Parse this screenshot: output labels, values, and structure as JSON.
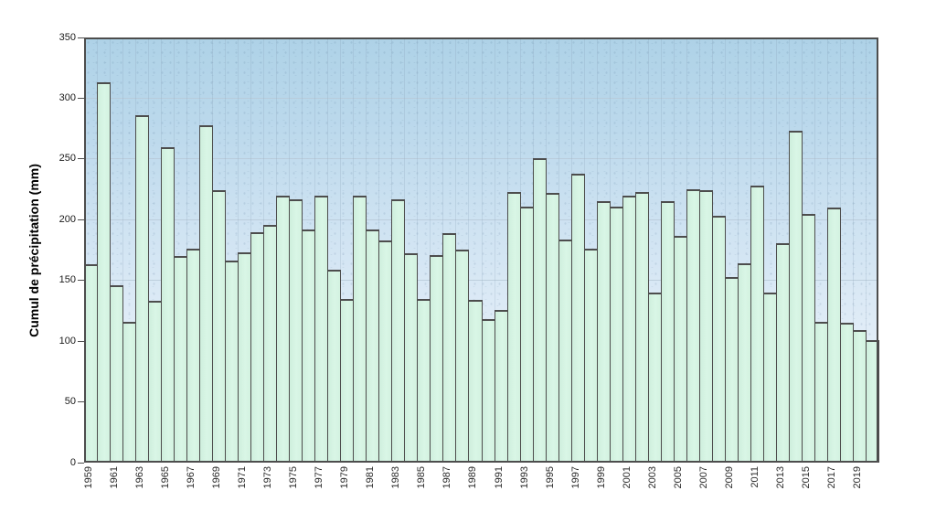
{
  "figure": {
    "title": "",
    "colors": {
      "bar_fill": "#d6f4e2",
      "bar_border": "#4d4d4d",
      "plot_frame": "#4d4d4d",
      "bg_gradient_top": "#aed2e7",
      "bg_gradient_bottom": "#f0f5fb",
      "grid_horizontal": "#b9cad8",
      "tick_text": "#1a1a1a"
    }
  },
  "chart_data": {
    "type": "bar",
    "title": "",
    "xlabel": "",
    "ylabel": "Cumul de précipitation (mm)",
    "ylim": [
      0,
      350
    ],
    "ytick_step": 50,
    "grid": true,
    "legend": "none",
    "x": [
      1959,
      1960,
      1961,
      1962,
      1963,
      1964,
      1965,
      1966,
      1967,
      1968,
      1969,
      1970,
      1971,
      1972,
      1973,
      1974,
      1975,
      1976,
      1977,
      1978,
      1979,
      1980,
      1981,
      1982,
      1983,
      1984,
      1985,
      1986,
      1987,
      1988,
      1989,
      1990,
      1991,
      1992,
      1993,
      1994,
      1995,
      1996,
      1997,
      1998,
      1999,
      2000,
      2001,
      2002,
      2003,
      2004,
      2005,
      2006,
      2007,
      2008,
      2009,
      2010,
      2011,
      2012,
      2013,
      2014,
      2015,
      2016,
      2017,
      2018,
      2019,
      2020
    ],
    "values": [
      163,
      313,
      146,
      116,
      286,
      133,
      260,
      170,
      176,
      278,
      224,
      166,
      173,
      190,
      196,
      220,
      217,
      192,
      220,
      159,
      135,
      220,
      192,
      183,
      217,
      172,
      135,
      171,
      189,
      175,
      134,
      118,
      126,
      223,
      211,
      251,
      222,
      184,
      238,
      176,
      215,
      211,
      220,
      223,
      140,
      215,
      187,
      225,
      224,
      203,
      153,
      164,
      228,
      140,
      181,
      273,
      205,
      116,
      210,
      115,
      109,
      101
    ],
    "xtick_labels": [
      "1959",
      "1961",
      "1963",
      "1965",
      "1967",
      "1969",
      "1971",
      "1973",
      "1975",
      "1977",
      "1979",
      "1981",
      "1983",
      "1985",
      "1987",
      "1989",
      "1991",
      "1993",
      "1995",
      "1997",
      "1999",
      "2001",
      "2003",
      "2005",
      "2007",
      "2009",
      "2011",
      "2013",
      "2015",
      "2017",
      "2019"
    ]
  }
}
